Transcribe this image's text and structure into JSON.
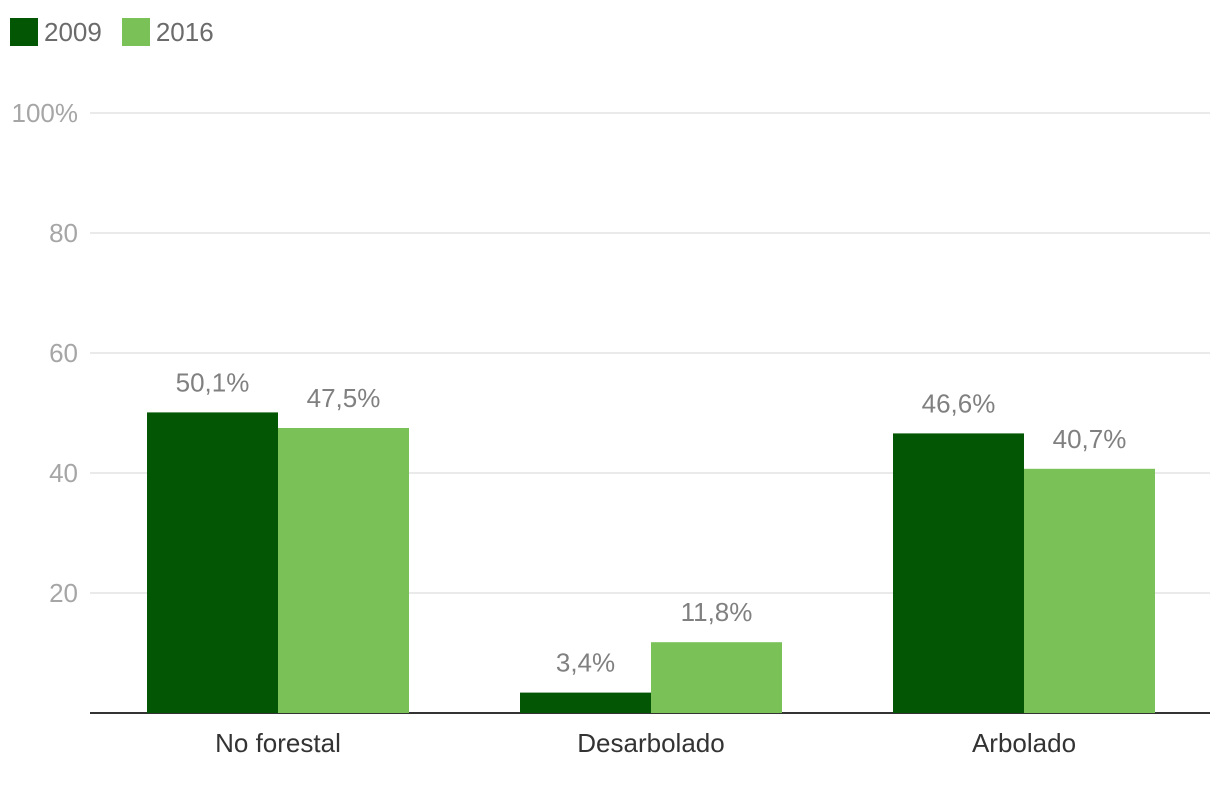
{
  "chart_data": {
    "type": "bar",
    "categories": [
      "No forestal",
      "Desarbolado",
      "Arbolado"
    ],
    "series": [
      {
        "name": "2009",
        "values": [
          50.1,
          3.4,
          46.6
        ],
        "labels": [
          "50,1%",
          "3,4%",
          "46,6%"
        ],
        "color": "#035603"
      },
      {
        "name": "2016",
        "values": [
          47.5,
          11.8,
          40.7
        ],
        "labels": [
          "47,5%",
          "11,8%",
          "40,7%"
        ],
        "color": "#7ac158"
      }
    ],
    "yticks": [
      {
        "value": 20,
        "label": "20"
      },
      {
        "value": 40,
        "label": "40"
      },
      {
        "value": 60,
        "label": "60"
      },
      {
        "value": 80,
        "label": "80"
      },
      {
        "value": 100,
        "label": "100%"
      }
    ],
    "ylim": [
      0,
      100
    ],
    "grid": true,
    "legend_position": "top-left",
    "title": "",
    "xlabel": "",
    "ylabel": ""
  }
}
